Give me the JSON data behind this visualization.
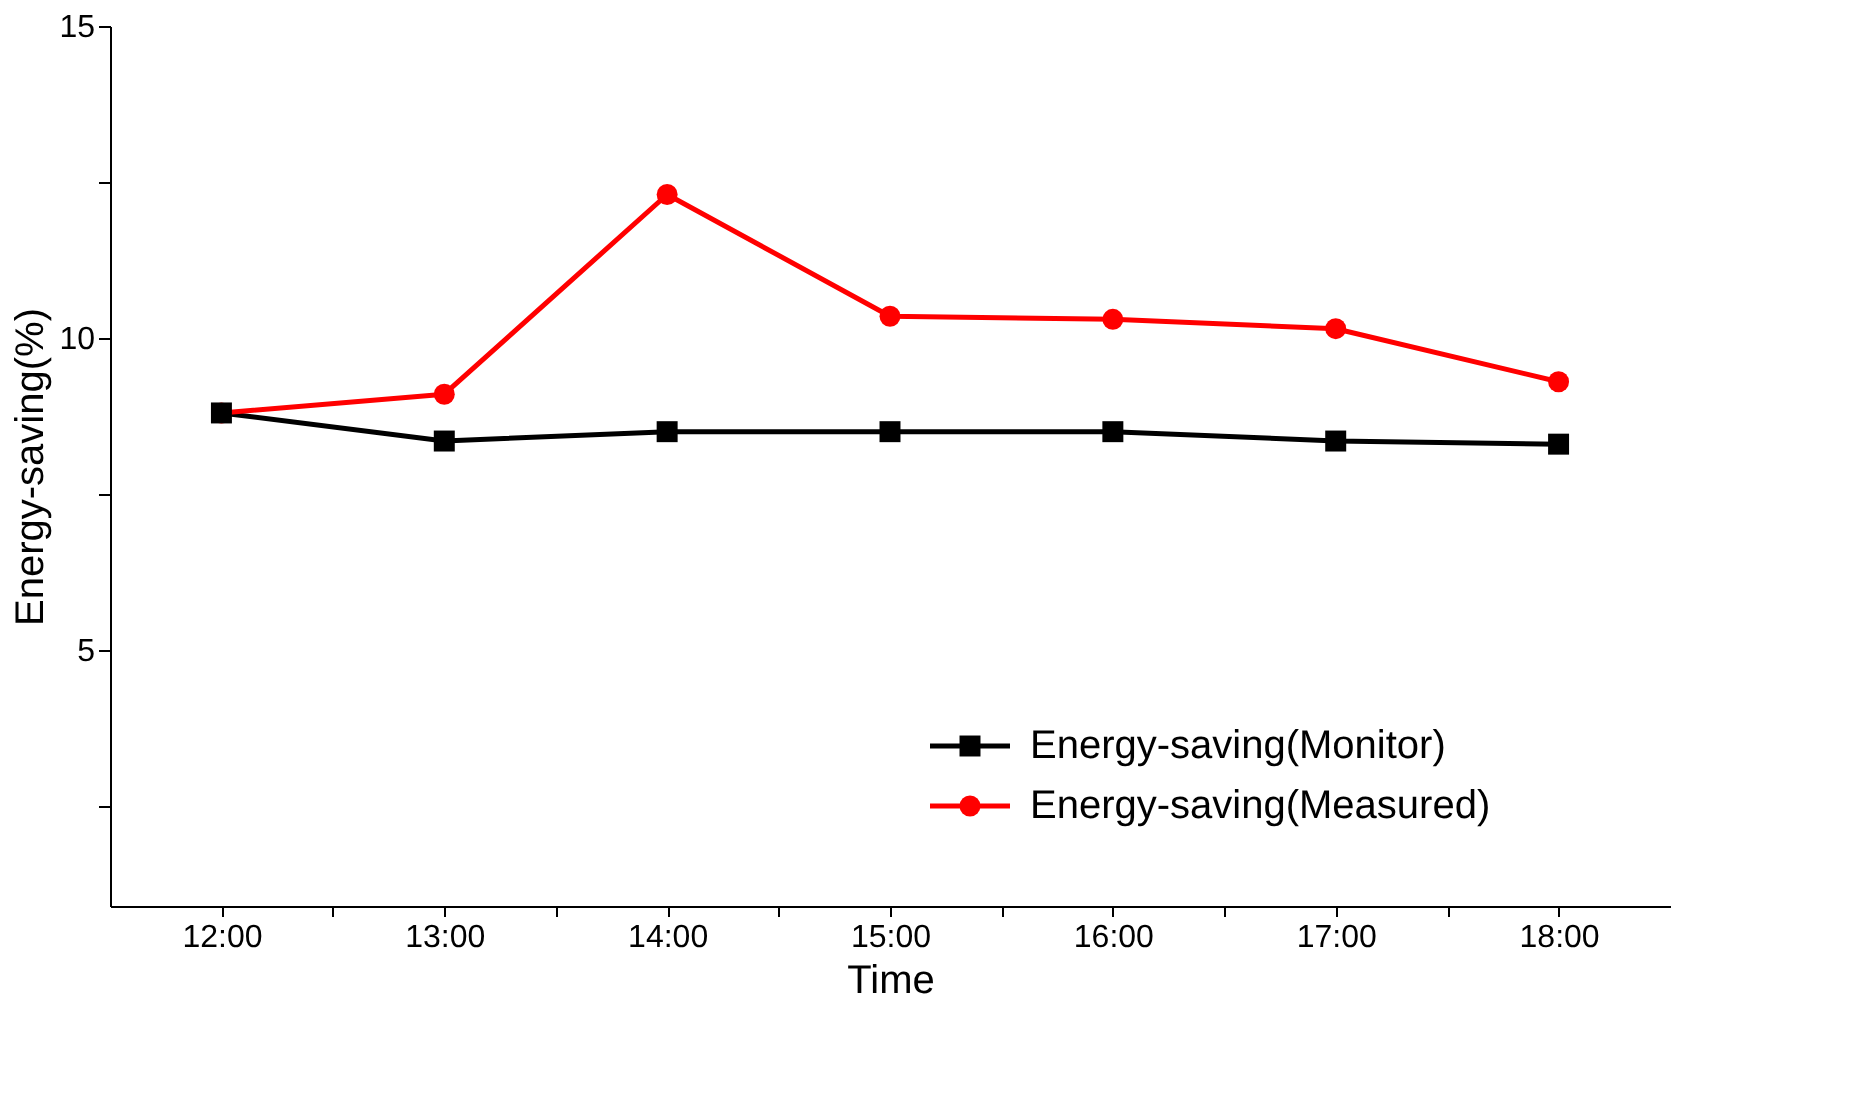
{
  "chart_data": {
    "type": "line",
    "xlabel": "Time",
    "ylabel": "Energy-saving(%)",
    "x": [
      12,
      13,
      14,
      15,
      16,
      17,
      18
    ],
    "xlim": [
      11.5,
      18.5
    ],
    "xticks": [
      {
        "value": 12,
        "label": "12:00"
      },
      {
        "value": 12.5,
        "label": null
      },
      {
        "value": 13,
        "label": "13:00"
      },
      {
        "value": 13.5,
        "label": null
      },
      {
        "value": 14,
        "label": "14:00"
      },
      {
        "value": 14.5,
        "label": null
      },
      {
        "value": 15,
        "label": "15:00"
      },
      {
        "value": 15.5,
        "label": null
      },
      {
        "value": 16,
        "label": "16:00"
      },
      {
        "value": 16.5,
        "label": null
      },
      {
        "value": 17,
        "label": "17:00"
      },
      {
        "value": 17.5,
        "label": null
      },
      {
        "value": 18,
        "label": "18:00"
      }
    ],
    "ylim": [
      0.9,
      15
    ],
    "yticks": [
      {
        "value": 2.5,
        "label": null
      },
      5,
      {
        "value": 7.5,
        "label": null
      },
      10,
      {
        "value": 12.5,
        "label": null
      },
      15
    ],
    "series": [
      {
        "name": "Energy-saving(Monitor)",
        "color": "#000000",
        "marker": "square",
        "values": [
          8.8,
          8.35,
          8.5,
          8.5,
          8.5,
          8.35,
          8.3
        ]
      },
      {
        "name": "Energy-saving(Measured)",
        "color": "#ff0000",
        "marker": "circle",
        "values": [
          8.8,
          9.1,
          12.3,
          10.35,
          10.3,
          10.15,
          9.3
        ]
      }
    ],
    "grid": false,
    "legend": "bottom right",
    "line_style": "solid"
  }
}
